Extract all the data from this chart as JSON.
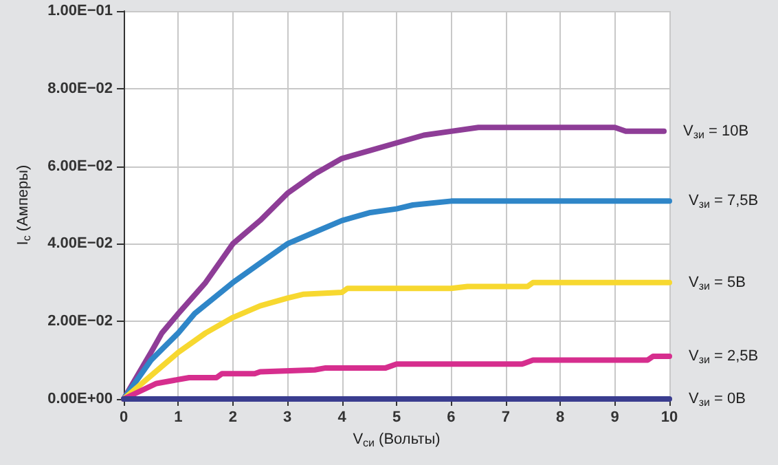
{
  "chart_data": {
    "type": "line",
    "xlabel": "V$_{си}$ (Вольты)",
    "ylabel": "I$_{c}$ (Амперы)",
    "xlim": [
      0,
      10
    ],
    "xticks": [
      0,
      1,
      2,
      3,
      4,
      5,
      6,
      7,
      8,
      9,
      10
    ],
    "ylim": [
      0,
      0.1
    ],
    "yticks": [
      {
        "value": 0,
        "label": "0.00E+00"
      },
      {
        "value": 0.02,
        "label": "2.00E−02"
      },
      {
        "value": 0.04,
        "label": "4.00E−02"
      },
      {
        "value": 0.06,
        "label": "6.00E−02"
      },
      {
        "value": 0.08,
        "label": "8.00E−02"
      },
      {
        "value": 0.1,
        "label": "1.00E−01"
      }
    ],
    "grid": true,
    "legend": false,
    "marker": "none",
    "line_style": "solid",
    "series": [
      {
        "name": "V$_{зи}$ = 10В",
        "color": "#8e3d97",
        "x": [
          0,
          0.5,
          0.7,
          1,
          1.5,
          1.8,
          2,
          2.5,
          3,
          3.5,
          4,
          4.5,
          5,
          5.5,
          6,
          6.5,
          9,
          9.2,
          9.9
        ],
        "values": [
          0,
          0.012,
          0.017,
          0.022,
          0.03,
          0.036,
          0.04,
          0.046,
          0.053,
          0.058,
          0.062,
          0.064,
          0.066,
          0.068,
          0.069,
          0.07,
          0.07,
          0.069,
          0.069
        ]
      },
      {
        "name": "V$_{зи}$ = 7,5В",
        "color": "#2f86c8",
        "x": [
          0,
          0.5,
          1,
          1.3,
          2,
          2.5,
          3,
          3.5,
          4,
          4.5,
          5,
          5.3,
          6,
          10
        ],
        "values": [
          0,
          0.01,
          0.017,
          0.022,
          0.03,
          0.035,
          0.04,
          0.043,
          0.046,
          0.048,
          0.049,
          0.05,
          0.051,
          0.051
        ]
      },
      {
        "name": "V$_{зи}$ = 5В",
        "color": "#f7d830",
        "x": [
          0,
          0.5,
          1,
          1.5,
          2,
          2.5,
          3,
          3.3,
          4,
          4.1,
          5,
          6,
          6.3,
          7.4,
          7.5,
          10
        ],
        "values": [
          0,
          0.006,
          0.012,
          0.017,
          0.021,
          0.024,
          0.026,
          0.027,
          0.0275,
          0.0285,
          0.0285,
          0.0285,
          0.029,
          0.029,
          0.03,
          0.03
        ]
      },
      {
        "name": "V$_{зи}$ = 2,5В",
        "color": "#d62e8e",
        "x": [
          0,
          0.6,
          1,
          1.2,
          1.7,
          1.8,
          2.4,
          2.5,
          3.5,
          3.7,
          4.8,
          5,
          6,
          7.3,
          7.5,
          9.6,
          9.7,
          10
        ],
        "values": [
          0,
          0.004,
          0.005,
          0.0055,
          0.0055,
          0.0065,
          0.0065,
          0.007,
          0.0075,
          0.008,
          0.008,
          0.009,
          0.009,
          0.009,
          0.01,
          0.01,
          0.011,
          0.011
        ]
      },
      {
        "name": "V$_{зи}$ = 0В",
        "color": "#3a3d8f",
        "x": [
          0,
          10
        ],
        "values": [
          0,
          0
        ]
      }
    ]
  }
}
